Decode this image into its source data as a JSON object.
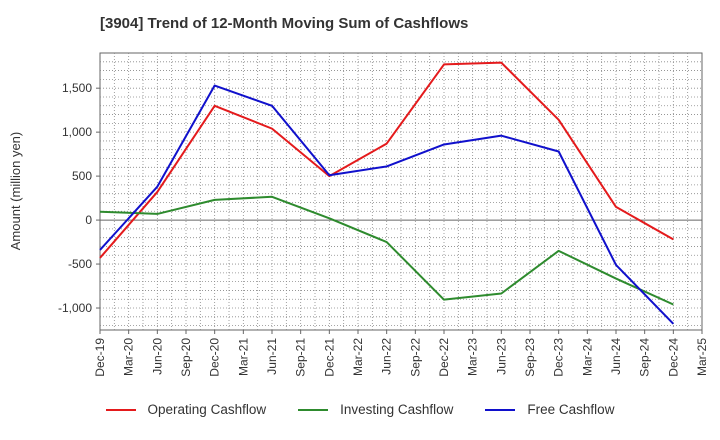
{
  "chart_data": {
    "type": "line",
    "title": "[3904]  Trend of 12-Month Moving Sum of Cashflows",
    "ylabel": "Amount (million yen)",
    "xlabel": "",
    "ylim": [
      -1250,
      1900
    ],
    "yticks": [
      -1000,
      -500,
      0,
      500,
      1000,
      1500
    ],
    "ytick_labels": [
      "-1,000",
      "-500",
      "0",
      "500",
      "1,000",
      "1,500"
    ],
    "x_labels": [
      "Dec-19",
      "Mar-20",
      "Jun-20",
      "Sep-20",
      "Dec-20",
      "Mar-21",
      "Jun-21",
      "Sep-21",
      "Dec-21",
      "Mar-22",
      "Jun-22",
      "Sep-22",
      "Dec-22",
      "Mar-23",
      "Jun-23",
      "Sep-23",
      "Dec-23",
      "Mar-24",
      "Jun-24",
      "Sep-24",
      "Dec-24",
      "Mar-25"
    ],
    "grid": true,
    "legend_position": "bottom",
    "series": [
      {
        "name": "Operating Cashflow",
        "color": "#e41a1c",
        "x_index": [
          0,
          2,
          4,
          6,
          8,
          10,
          12,
          14,
          16,
          18,
          20
        ],
        "values": [
          -430,
          320,
          1300,
          1040,
          500,
          870,
          1770,
          1790,
          1140,
          150,
          -220
        ]
      },
      {
        "name": "Investing Cashflow",
        "color": "#2e8b2e",
        "x_index": [
          0,
          2,
          4,
          6,
          8,
          10,
          12,
          14,
          16,
          18,
          20
        ],
        "values": [
          95,
          70,
          230,
          265,
          20,
          -250,
          -905,
          -835,
          -350,
          -665,
          -960
        ]
      },
      {
        "name": "Free Cashflow",
        "color": "#1010cc",
        "x_index": [
          0,
          2,
          4,
          6,
          8,
          10,
          12,
          14,
          16,
          18,
          20
        ],
        "values": [
          -340,
          380,
          1530,
          1300,
          510,
          610,
          860,
          960,
          780,
          -510,
          -1180
        ]
      }
    ]
  }
}
